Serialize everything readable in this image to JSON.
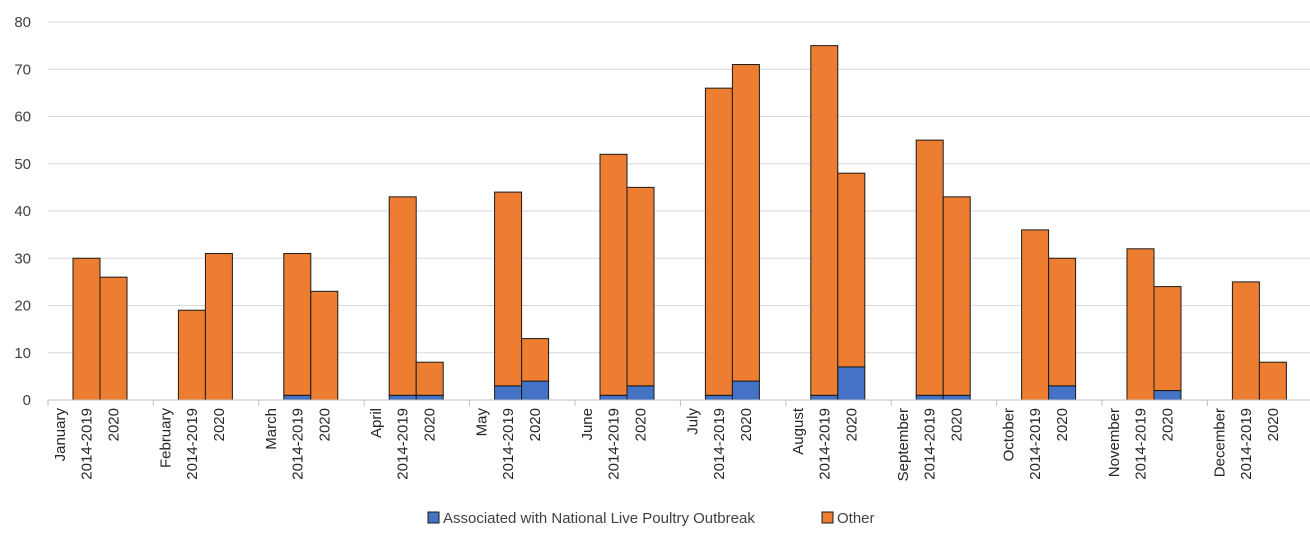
{
  "chart_data": {
    "type": "bar",
    "stacked": true,
    "title": "",
    "xlabel": "",
    "ylabel": "",
    "ylim": [
      0,
      80
    ],
    "yticks": [
      0,
      10,
      20,
      30,
      40,
      50,
      60,
      70,
      80
    ],
    "grid": true,
    "legend_position": "bottom",
    "months": [
      "January",
      "February",
      "March",
      "April",
      "May",
      "June",
      "July",
      "August",
      "September",
      "October",
      "November",
      "December"
    ],
    "period_labels": [
      "2014-2019",
      "2020"
    ],
    "series": [
      {
        "name": "Associated with National Live Poultry Outbreak",
        "color": "#4472C4",
        "values": [
          [
            0,
            0
          ],
          [
            0,
            0
          ],
          [
            1,
            0
          ],
          [
            1,
            1
          ],
          [
            3,
            4
          ],
          [
            1,
            3
          ],
          [
            1,
            4
          ],
          [
            1,
            7
          ],
          [
            1,
            1
          ],
          [
            0,
            3
          ],
          [
            0,
            2
          ],
          [
            0,
            0
          ]
        ]
      },
      {
        "name": "Other",
        "color": "#ED7D31",
        "values": [
          [
            30,
            26
          ],
          [
            19,
            31
          ],
          [
            30,
            23
          ],
          [
            42,
            7
          ],
          [
            41,
            9
          ],
          [
            51,
            42
          ],
          [
            65,
            67
          ],
          [
            74,
            41
          ],
          [
            54,
            42
          ],
          [
            36,
            27
          ],
          [
            32,
            22
          ],
          [
            25,
            8
          ]
        ]
      }
    ]
  }
}
